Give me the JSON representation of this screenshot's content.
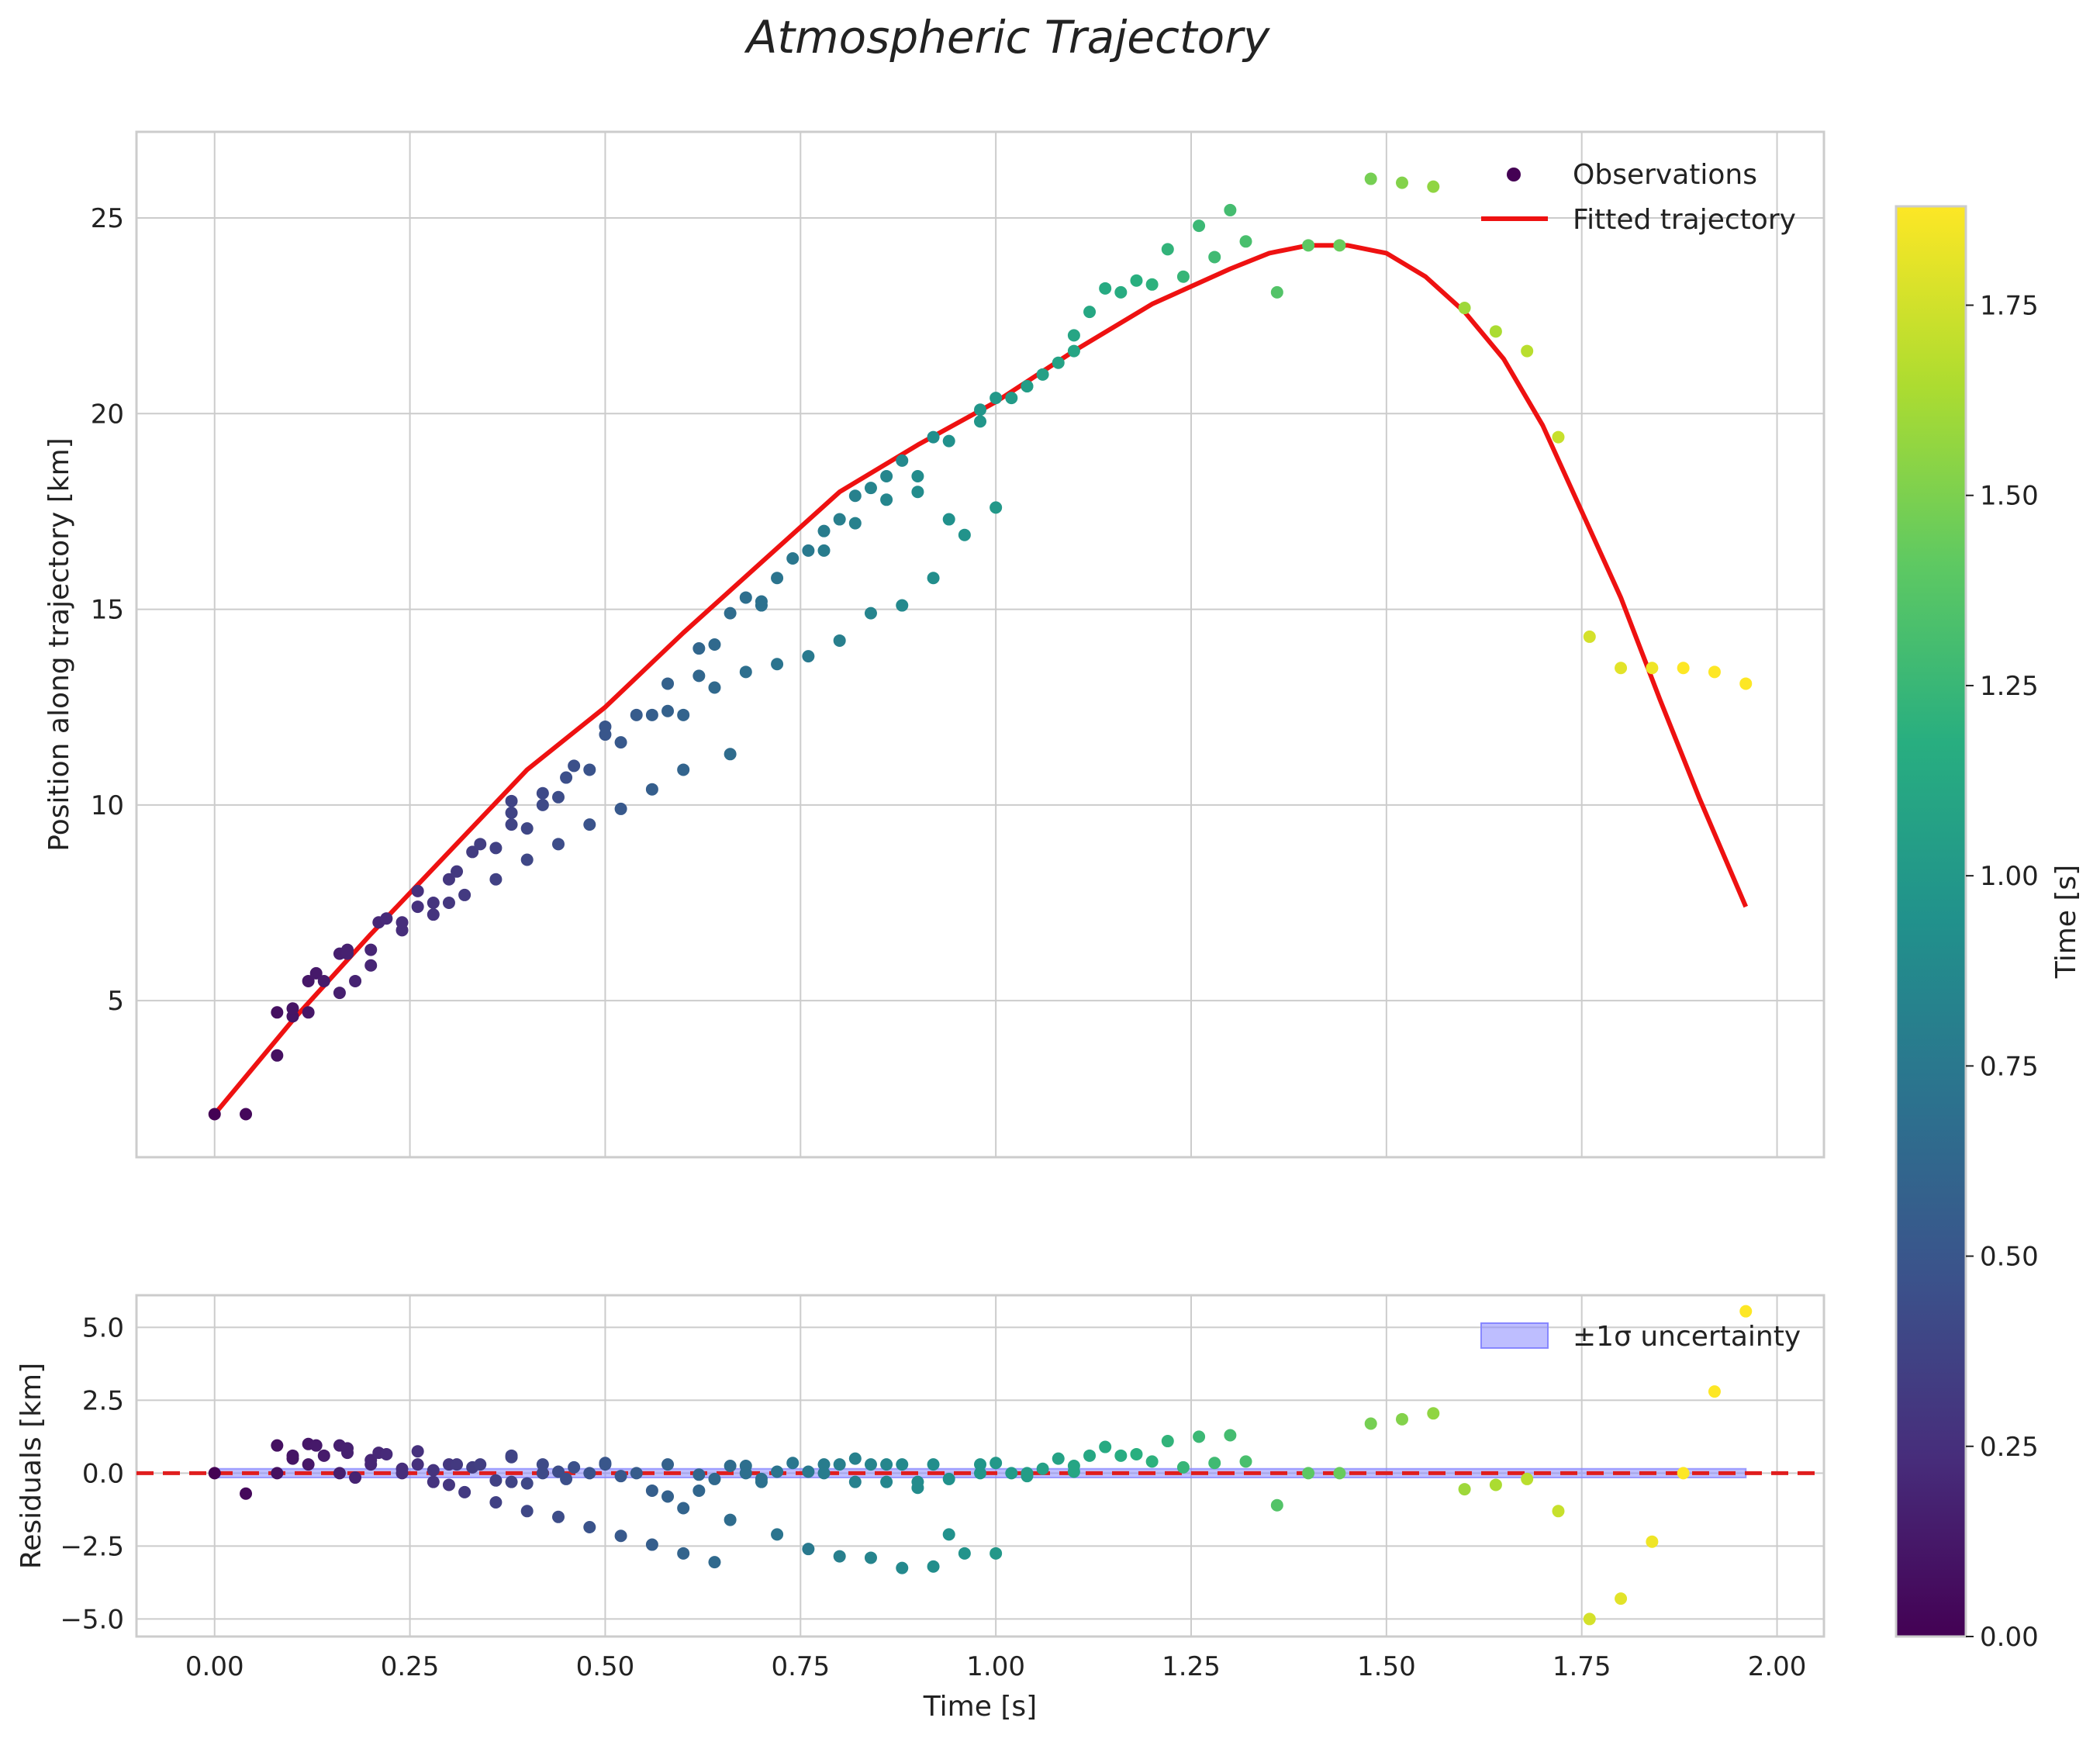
{
  "chart_data": {
    "type": "scatter",
    "title": "Atmospheric Trajectory",
    "colorscale": "viridis",
    "main_panel": {
      "ylabel": "Position along trajectory [km]",
      "xlim": [
        -0.1,
        2.06
      ],
      "ylim": [
        1,
        27.2
      ],
      "xticks": [
        0.0,
        0.25,
        0.5,
        0.75,
        1.0,
        1.25,
        1.5,
        1.75,
        2.0
      ],
      "yticks": [
        5,
        10,
        15,
        20,
        25
      ],
      "ytick_labels": [
        "5",
        "10",
        "15",
        "20",
        "25"
      ],
      "legend": {
        "position": "top-right",
        "entries": [
          "Observations",
          "Fitted trajectory"
        ]
      },
      "fit_curve": {
        "name": "Fitted trajectory",
        "color": "#ee1111",
        "x": [
          0.0,
          0.1,
          0.2,
          0.3,
          0.4,
          0.5,
          0.6,
          0.7,
          0.8,
          0.9,
          1.0,
          1.1,
          1.2,
          1.3,
          1.35,
          1.4,
          1.45,
          1.5,
          1.55,
          1.6,
          1.65,
          1.7,
          1.75,
          1.8,
          1.85,
          1.9,
          1.96
        ],
        "y": [
          2.1,
          4.5,
          6.7,
          8.8,
          10.9,
          12.5,
          14.4,
          16.2,
          18.0,
          19.2,
          20.3,
          21.6,
          22.8,
          23.7,
          24.1,
          24.3,
          24.3,
          24.1,
          23.5,
          22.6,
          21.4,
          19.7,
          17.5,
          15.3,
          12.7,
          10.2,
          7.4
        ]
      },
      "observations": {
        "name": "Observations",
        "x": [
          0.0,
          0.04,
          0.08,
          0.08,
          0.1,
          0.1,
          0.12,
          0.12,
          0.13,
          0.14,
          0.16,
          0.16,
          0.17,
          0.17,
          0.18,
          0.2,
          0.2,
          0.21,
          0.22,
          0.24,
          0.24,
          0.26,
          0.26,
          0.28,
          0.28,
          0.3,
          0.3,
          0.31,
          0.32,
          0.33,
          0.34,
          0.36,
          0.36,
          0.38,
          0.38,
          0.38,
          0.4,
          0.4,
          0.42,
          0.42,
          0.44,
          0.44,
          0.45,
          0.46,
          0.48,
          0.48,
          0.5,
          0.5,
          0.52,
          0.52,
          0.54,
          0.56,
          0.56,
          0.58,
          0.58,
          0.6,
          0.6,
          0.62,
          0.62,
          0.64,
          0.64,
          0.66,
          0.66,
          0.68,
          0.68,
          0.7,
          0.7,
          0.72,
          0.72,
          0.74,
          0.76,
          0.76,
          0.78,
          0.78,
          0.8,
          0.8,
          0.82,
          0.82,
          0.84,
          0.84,
          0.86,
          0.86,
          0.88,
          0.88,
          0.9,
          0.9,
          0.92,
          0.92,
          0.94,
          0.94,
          0.96,
          0.98,
          0.98,
          1.0,
          1.0,
          1.02,
          1.04,
          1.04,
          1.06,
          1.08,
          1.1,
          1.1,
          1.12,
          1.14,
          1.16,
          1.18,
          1.2,
          1.22,
          1.24,
          1.26,
          1.28,
          1.3,
          1.32,
          1.36,
          1.4,
          1.44,
          1.48,
          1.52,
          1.56,
          1.6,
          1.64,
          1.68,
          1.72,
          1.76,
          1.8,
          1.84,
          1.88,
          1.92,
          1.96
        ],
        "y": [
          2.1,
          2.1,
          3.6,
          4.7,
          4.6,
          4.8,
          4.7,
          5.5,
          5.7,
          5.5,
          5.2,
          6.2,
          6.2,
          6.3,
          5.5,
          5.9,
          6.3,
          7.0,
          7.1,
          6.8,
          7.0,
          7.4,
          7.8,
          7.5,
          7.2,
          7.5,
          8.1,
          8.3,
          7.7,
          8.8,
          9.0,
          8.9,
          8.1,
          9.8,
          10.1,
          9.5,
          9.4,
          8.6,
          10.0,
          10.3,
          10.2,
          9.0,
          10.7,
          11.0,
          10.9,
          9.5,
          11.8,
          12.0,
          11.6,
          9.9,
          12.3,
          12.3,
          10.4,
          13.1,
          12.4,
          12.3,
          10.9,
          14.0,
          13.3,
          14.1,
          13.0,
          14.9,
          11.3,
          15.3,
          13.4,
          15.2,
          15.1,
          15.8,
          13.6,
          16.3,
          16.5,
          13.8,
          17.0,
          16.5,
          17.3,
          14.2,
          17.9,
          17.2,
          18.1,
          14.9,
          18.4,
          17.8,
          18.8,
          15.1,
          18.4,
          18.0,
          19.4,
          15.8,
          19.3,
          17.3,
          16.9,
          20.1,
          19.8,
          20.4,
          17.6,
          20.4,
          20.7,
          20.7,
          21.0,
          21.3,
          22.0,
          21.6,
          22.6,
          23.2,
          23.1,
          23.4,
          23.3,
          24.2,
          23.5,
          24.8,
          24.0,
          25.2,
          24.4,
          23.1,
          24.3,
          24.3,
          26.0,
          25.9,
          25.8,
          22.7,
          22.1,
          21.6,
          19.4,
          14.3,
          13.5,
          13.5,
          13.5,
          13.4,
          13.1
        ]
      }
    },
    "residual_panel": {
      "xlabel": "Time [s]",
      "ylabel": "Residuals [km]",
      "xlim": [
        -0.1,
        2.06
      ],
      "ylim": [
        -5.6,
        6.1
      ],
      "yticks": [
        -5.0,
        -2.5,
        0.0,
        2.5,
        5.0
      ],
      "ytick_labels": [
        "−5.0",
        "−2.5",
        "0.0",
        "2.5",
        "5.0"
      ],
      "xtick_labels": [
        "0.00",
        "0.25",
        "0.50",
        "0.75",
        "1.00",
        "1.25",
        "1.50",
        "1.75",
        "2.00"
      ],
      "zero_line": 0,
      "band": {
        "label": "±1σ uncertainty",
        "range": [
          -0.15,
          0.15
        ],
        "x_range": [
          0.0,
          1.96
        ],
        "color": "#8888ff"
      },
      "legend": {
        "position": "top-right",
        "entries": [
          "±1σ uncertainty"
        ]
      },
      "residuals": {
        "x": [
          0.0,
          0.04,
          0.08,
          0.08,
          0.1,
          0.1,
          0.12,
          0.12,
          0.13,
          0.14,
          0.16,
          0.16,
          0.17,
          0.17,
          0.18,
          0.2,
          0.2,
          0.21,
          0.22,
          0.24,
          0.24,
          0.26,
          0.26,
          0.28,
          0.28,
          0.3,
          0.3,
          0.31,
          0.32,
          0.33,
          0.34,
          0.36,
          0.36,
          0.38,
          0.38,
          0.38,
          0.4,
          0.4,
          0.42,
          0.42,
          0.44,
          0.44,
          0.45,
          0.46,
          0.48,
          0.48,
          0.5,
          0.5,
          0.52,
          0.52,
          0.54,
          0.56,
          0.56,
          0.58,
          0.58,
          0.6,
          0.6,
          0.62,
          0.62,
          0.64,
          0.64,
          0.66,
          0.66,
          0.68,
          0.68,
          0.7,
          0.7,
          0.72,
          0.72,
          0.74,
          0.76,
          0.76,
          0.78,
          0.78,
          0.8,
          0.8,
          0.82,
          0.82,
          0.84,
          0.84,
          0.86,
          0.86,
          0.88,
          0.88,
          0.9,
          0.9,
          0.92,
          0.92,
          0.94,
          0.94,
          0.96,
          0.98,
          0.98,
          1.0,
          1.0,
          1.02,
          1.04,
          1.04,
          1.06,
          1.08,
          1.1,
          1.1,
          1.12,
          1.14,
          1.16,
          1.18,
          1.2,
          1.22,
          1.24,
          1.26,
          1.28,
          1.3,
          1.32,
          1.36,
          1.4,
          1.44,
          1.48,
          1.52,
          1.56,
          1.6,
          1.64,
          1.68,
          1.72,
          1.76,
          1.8,
          1.84,
          1.88,
          1.92,
          1.96
        ],
        "y": [
          0.0,
          -0.7,
          0.0,
          0.95,
          0.5,
          0.6,
          0.3,
          1.0,
          0.95,
          0.6,
          0.0,
          0.95,
          0.85,
          0.7,
          -0.15,
          0.3,
          0.45,
          0.7,
          0.65,
          0.0,
          0.15,
          0.3,
          0.75,
          -0.3,
          0.1,
          -0.4,
          0.3,
          0.3,
          -0.65,
          0.2,
          0.3,
          -0.25,
          -1.0,
          0.55,
          0.6,
          -0.3,
          -0.35,
          -1.3,
          0.3,
          0.0,
          0.05,
          -1.5,
          -0.2,
          0.2,
          0.0,
          -1.85,
          0.3,
          0.35,
          -0.1,
          -2.15,
          0.0,
          -0.6,
          -2.45,
          0.3,
          -0.8,
          -1.2,
          -2.75,
          -0.6,
          -0.05,
          -3.05,
          -0.2,
          0.25,
          -1.6,
          0.25,
          0.0,
          -0.2,
          -0.3,
          0.05,
          -2.1,
          0.35,
          0.05,
          -2.6,
          0.3,
          0.0,
          0.3,
          -2.85,
          0.5,
          -0.3,
          0.3,
          -2.9,
          0.3,
          -0.3,
          0.3,
          -3.25,
          -0.3,
          -0.5,
          0.3,
          -3.2,
          -0.2,
          -2.1,
          -2.75,
          0.3,
          0.0,
          0.35,
          -2.75,
          0.0,
          0.0,
          -0.1,
          0.15,
          0.5,
          0.25,
          0.05,
          0.6,
          0.9,
          0.6,
          0.65,
          0.4,
          1.1,
          0.2,
          1.25,
          0.35,
          1.3,
          0.4,
          -1.1,
          0.0,
          0.0,
          1.7,
          1.85,
          2.05,
          -0.55,
          -0.4,
          -0.2,
          -1.3,
          -5.0,
          -4.3,
          -2.35,
          0.0,
          2.8,
          5.55
        ]
      }
    },
    "colorbar": {
      "label": "Time [s]",
      "range": [
        0.0,
        1.88
      ],
      "ticks": [
        0.0,
        0.25,
        0.5,
        0.75,
        1.0,
        1.25,
        1.5,
        1.75
      ],
      "tick_labels": [
        "0.00",
        "0.25",
        "0.50",
        "0.75",
        "1.00",
        "1.25",
        "1.50",
        "1.75"
      ]
    }
  }
}
